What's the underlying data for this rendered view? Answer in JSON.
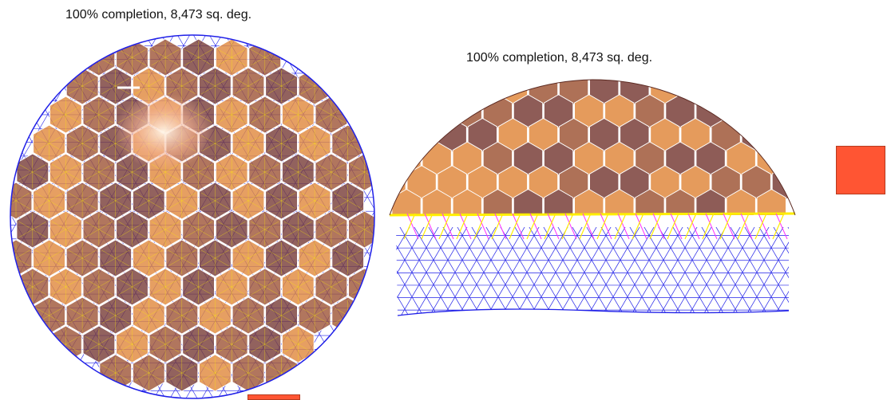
{
  "figure": {
    "left_panel": {
      "caption": "100% completion, 8,473 sq. deg."
    },
    "right_panel": {
      "caption": "100% completion, 8,473 sq. deg."
    }
  },
  "colors": {
    "mesh_blue": "#2020e8",
    "hex_outline": "#ffffff",
    "hex_fill_dark": "#7a3f3a",
    "hex_fill_mid": "#a0583a",
    "hex_fill_light": "#e08a40",
    "overlap_yellow": "#ffee00",
    "overlap_magenta": "#ff33ff",
    "legend_swatch": "#ff5533"
  }
}
